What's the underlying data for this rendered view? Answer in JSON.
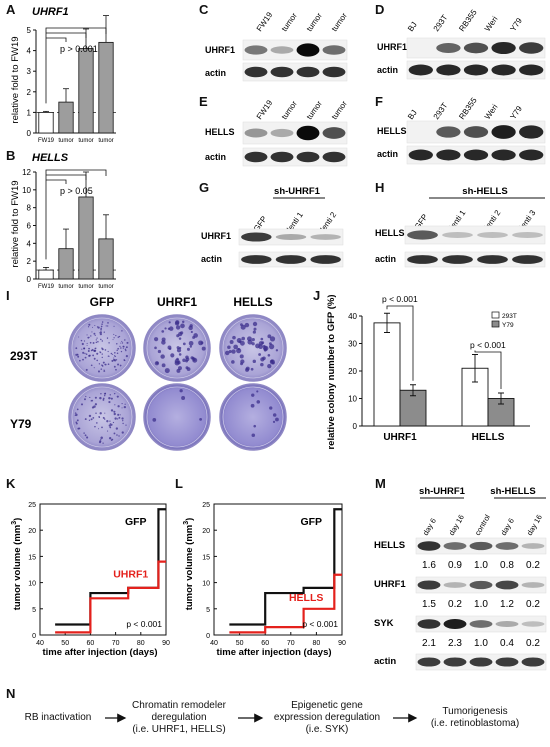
{
  "panel_labels": {
    "A": "A",
    "B": "B",
    "C": "C",
    "D": "D",
    "E": "E",
    "F": "F",
    "G": "G",
    "H": "H",
    "I": "I",
    "J": "J",
    "K": "K",
    "L": "L",
    "M": "M",
    "N": "N"
  },
  "chart_data": [
    {
      "id": "A",
      "type": "bar",
      "title": "UHRF1",
      "ylabel": "relative fold to FW19",
      "categories": [
        "FW19",
        "tumor",
        "tumor",
        "tumor"
      ],
      "values": [
        1.0,
        1.5,
        4.1,
        4.4
      ],
      "errors": [
        0.05,
        0.65,
        0.95,
        1.3
      ],
      "ylim": [
        0,
        5
      ],
      "yticks": [
        "0",
        "1",
        "2",
        "3",
        "4",
        "5"
      ],
      "pvalue": "p > 0.001",
      "baseline": 1
    },
    {
      "id": "B",
      "type": "bar",
      "title": "HELLS",
      "ylabel": "relative fold to FW19",
      "categories": [
        "FW19",
        "tumor",
        "tumor",
        "tumor"
      ],
      "values": [
        1.0,
        3.4,
        9.2,
        4.5
      ],
      "errors": [
        0.3,
        2.2,
        2.8,
        2.7
      ],
      "ylim": [
        0,
        12
      ],
      "yticks": [
        "0",
        "2",
        "4",
        "6",
        "8",
        "10",
        "12"
      ],
      "pvalue": "p > 0.05",
      "baseline": 1
    },
    {
      "id": "J",
      "type": "bar",
      "ylabel": "relative colony number to GFP (%)",
      "categories": [
        "UHRF1",
        "HELLS"
      ],
      "series": [
        {
          "name": "293T",
          "values": [
            37.5,
            21
          ],
          "errors": [
            3.5,
            5
          ]
        },
        {
          "name": "Y79",
          "values": [
            13,
            10
          ],
          "errors": [
            2,
            2
          ]
        }
      ],
      "ylim": [
        0,
        40
      ],
      "yticks": [
        "0",
        "10",
        "20",
        "30",
        "40"
      ],
      "pvalues": [
        "p < 0.001",
        "p < 0.001"
      ]
    },
    {
      "id": "K",
      "type": "line",
      "xlabel": "time after injection (days)",
      "ylabel": "tumor volume (mm",
      "ylabel_sup": "3",
      "xlim": [
        40,
        90
      ],
      "ylim": [
        0,
        25
      ],
      "xticks": [
        "40",
        "50",
        "60",
        "70",
        "80",
        "90"
      ],
      "yticks": [
        "0",
        "5",
        "10",
        "15",
        "20",
        "25"
      ],
      "series": [
        {
          "name": "GFP",
          "x": [
            46,
            60,
            75,
            87,
            87
          ],
          "y": [
            2,
            8,
            9,
            24,
            24
          ]
        },
        {
          "name": "UHRF1",
          "x": [
            46,
            60,
            75,
            87,
            90
          ],
          "y": [
            0.5,
            7,
            9,
            14,
            14
          ]
        }
      ],
      "pvalue": "p < 0.001"
    },
    {
      "id": "L",
      "type": "line",
      "xlabel": "time after injection (days)",
      "ylabel": "tumor volume (mm",
      "ylabel_sup": "3",
      "xlim": [
        40,
        90
      ],
      "ylim": [
        0,
        25
      ],
      "xticks": [
        "40",
        "50",
        "60",
        "70",
        "80",
        "90"
      ],
      "yticks": [
        "0",
        "5",
        "10",
        "15",
        "20",
        "25"
      ],
      "series": [
        {
          "name": "GFP",
          "x": [
            46,
            60,
            75,
            87,
            87
          ],
          "y": [
            2,
            8,
            9,
            24,
            24
          ]
        },
        {
          "name": "HELLS",
          "x": [
            46,
            60,
            75,
            87,
            90
          ],
          "y": [
            0.5,
            1.5,
            5,
            11.5,
            11.5
          ]
        }
      ],
      "pvalue": "p < 0.001"
    }
  ],
  "blots": {
    "C": {
      "lanes": [
        "FW19",
        "tumor",
        "tumor",
        "tumor"
      ],
      "rows": [
        "UHRF1",
        "actin"
      ]
    },
    "D": {
      "lanes": [
        "BJ",
        "293T",
        "RB355",
        "Weri",
        "Y79"
      ],
      "rows": [
        "UHRF1",
        "actin"
      ]
    },
    "E": {
      "lanes": [
        "FW19",
        "tumor",
        "tumor",
        "tumor"
      ],
      "rows": [
        "HELLS",
        "actin"
      ]
    },
    "F": {
      "lanes": [
        "BJ",
        "293T",
        "RB355",
        "Weri",
        "Y79"
      ],
      "rows": [
        "HELLS",
        "actin"
      ]
    },
    "G": {
      "header": "sh-UHRF1",
      "lanes": [
        "GFP",
        "lenti 1",
        "lenti 2"
      ],
      "rows": [
        "UHRF1",
        "actin"
      ]
    },
    "H": {
      "header": "sh-HELLS",
      "lanes": [
        "GFP",
        "lenti 1",
        "lenti 2",
        "lenti 3"
      ],
      "rows": [
        "HELLS",
        "actin"
      ]
    },
    "M": {
      "headers": [
        "sh-UHRF1",
        "sh-HELLS"
      ],
      "lanes": [
        "day 6",
        "day 16",
        "control",
        "day 6",
        "day 16"
      ],
      "rows": [
        "HELLS",
        "UHRF1",
        "SYK",
        "actin"
      ],
      "values": {
        "HELLS": [
          "1.6",
          "0.9",
          "1.0",
          "0.8",
          "0.2"
        ],
        "UHRF1": [
          "1.5",
          "0.2",
          "1.0",
          "1.2",
          "0.2"
        ],
        "SYK": [
          "2.1",
          "2.3",
          "1.0",
          "0.4",
          "0.2"
        ]
      }
    }
  },
  "colony": {
    "columns": [
      "GFP",
      "UHRF1",
      "HELLS"
    ],
    "rows": [
      "293T",
      "Y79"
    ]
  },
  "pathway": {
    "step1": "RB inactivation",
    "step2a": "Chromatin remodeler",
    "step2b": "deregulation",
    "step2c": "(i.e. UHRF1, HELLS)",
    "step3a": "Epigenetic gene",
    "step3b": "expression deregulation",
    "step3c": "(i.e. SYK)",
    "step4a": "Tumorigenesis",
    "step4b": "(i.e. retinoblastoma)"
  }
}
